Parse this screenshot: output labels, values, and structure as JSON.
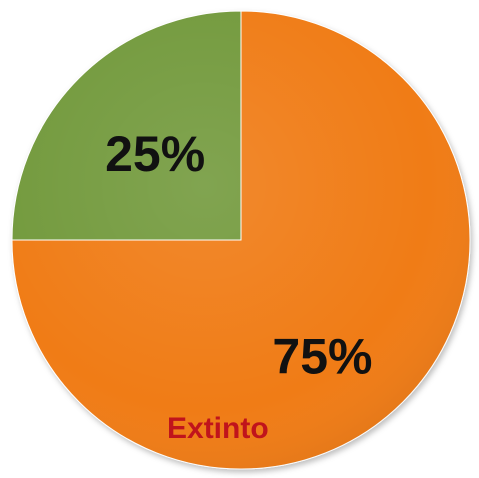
{
  "chart_data": {
    "type": "pie",
    "start_angle_deg": 0,
    "direction": "clockwise",
    "slices": [
      {
        "value": 75,
        "label": "75%",
        "category": "Extinto",
        "color": "#F07C12"
      },
      {
        "value": 25,
        "label": "25%",
        "category": "",
        "color": "#739A3E"
      }
    ],
    "label_colors": {
      "value": "#111111",
      "category": "#C0141C"
    }
  }
}
